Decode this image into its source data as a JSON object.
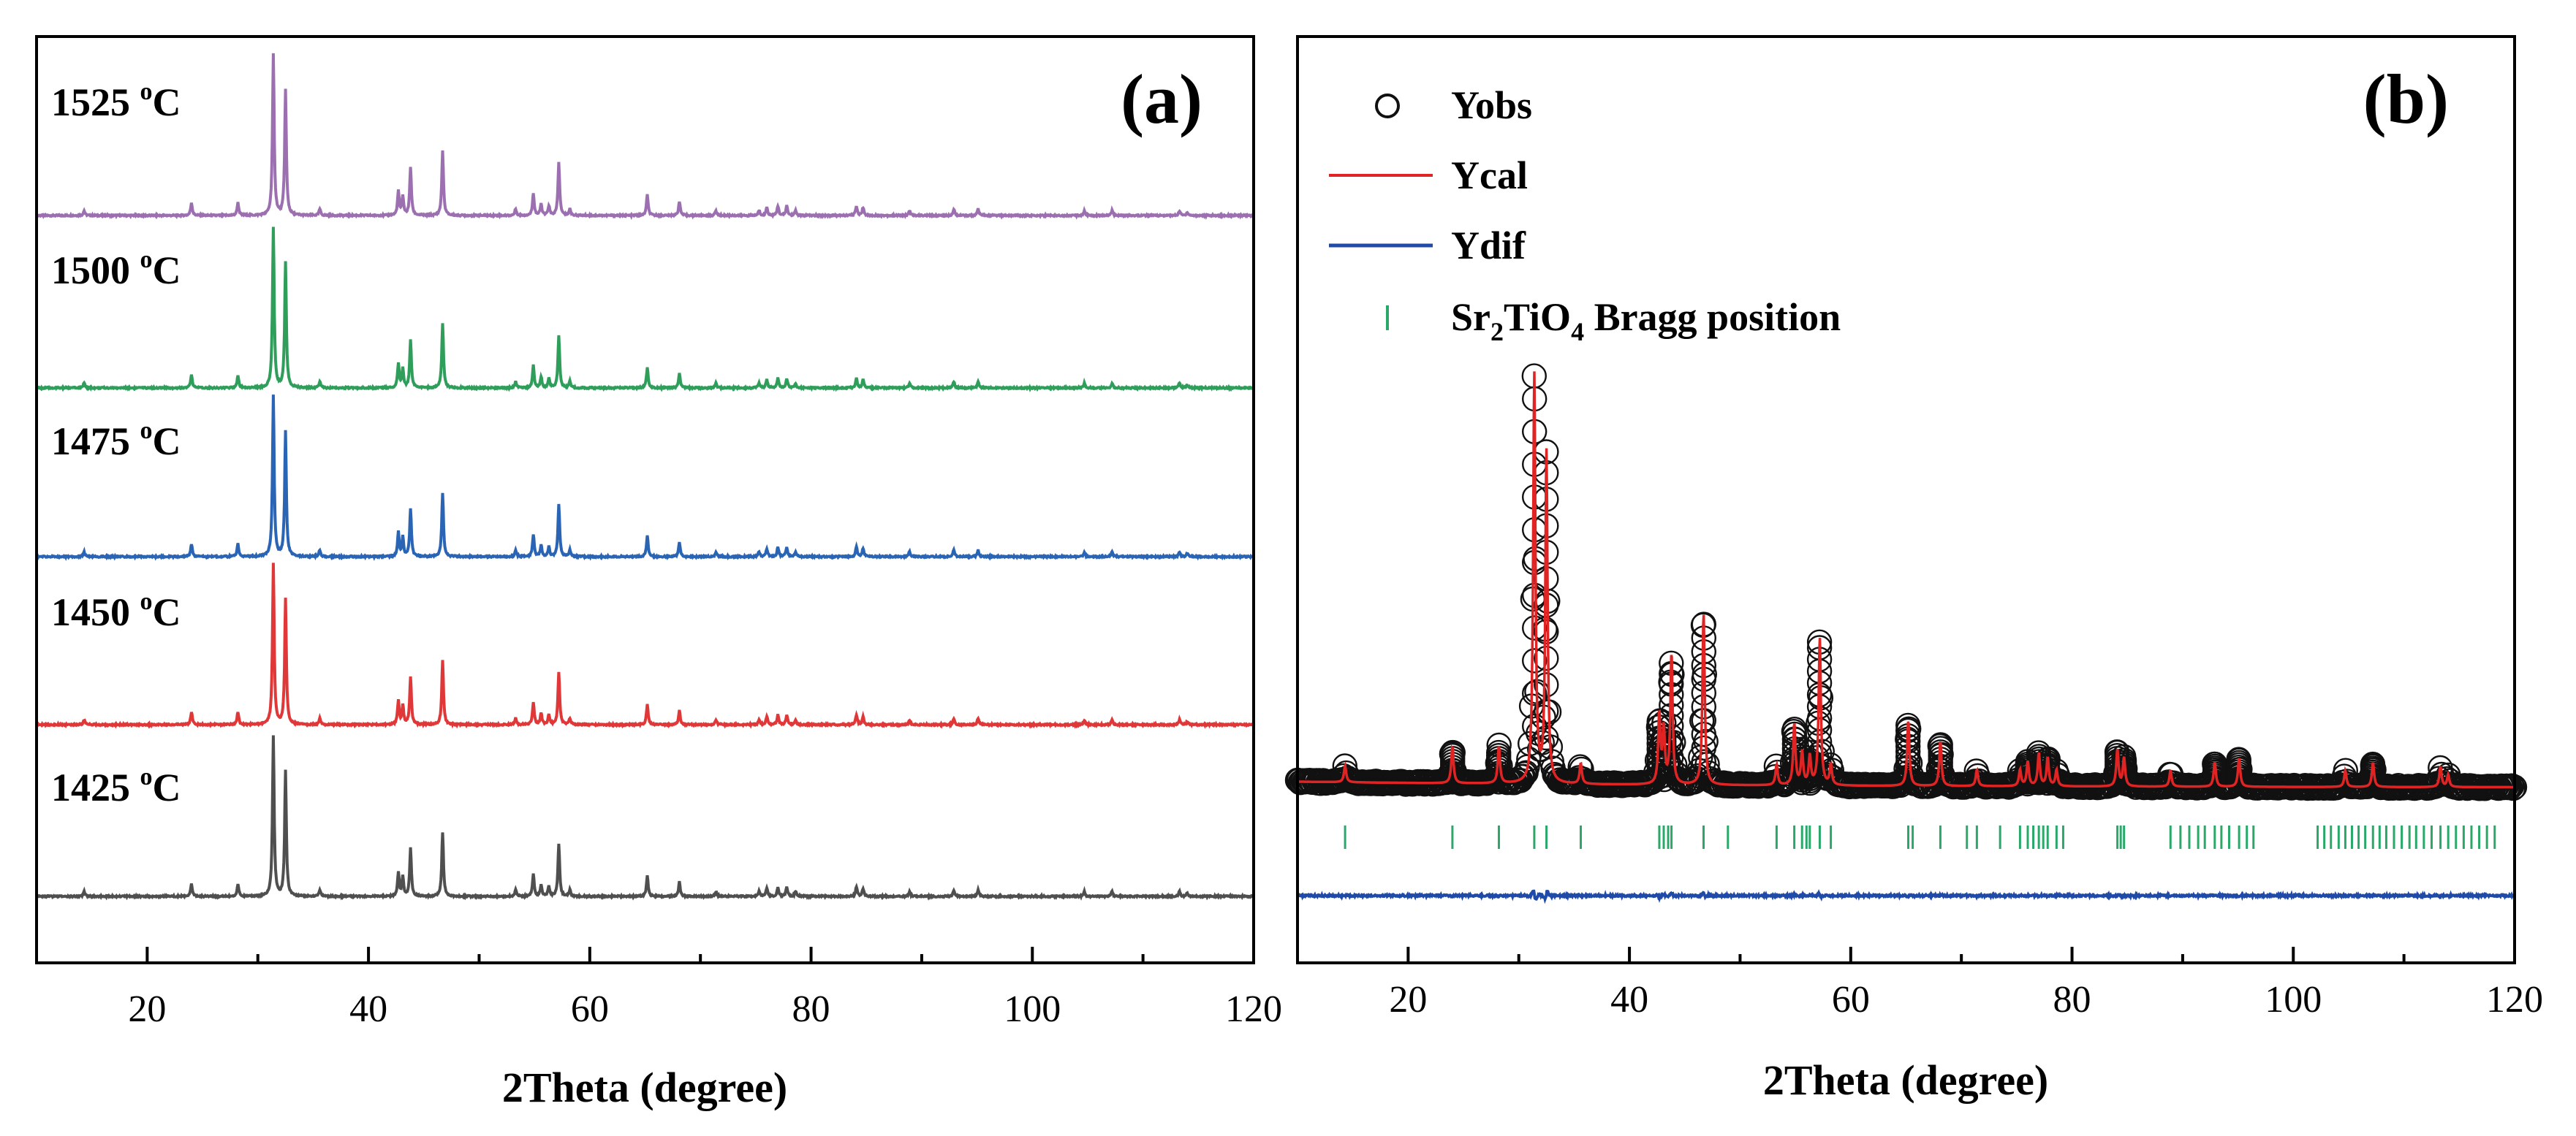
{
  "chart_data": [
    {
      "id": "a",
      "type": "line",
      "panel_label": "(a)",
      "xlabel": "2Theta (degree)",
      "ylabel": "",
      "xlim": [
        10,
        120
      ],
      "xticks": [
        20,
        40,
        60,
        80,
        100,
        120
      ],
      "grid": false,
      "colors": {
        "1525": "#9b6fb0",
        "1500": "#2e9e5a",
        "1475": "#2a64b4",
        "1450": "#e03838",
        "1425": "#4f4f4f"
      },
      "series": [
        {
          "key": "1525",
          "name": "1525 ",
          "sup": "o",
          "unit": "C"
        },
        {
          "key": "1500",
          "name": "1500 ",
          "sup": "o",
          "unit": "C"
        },
        {
          "key": "1475",
          "name": "1475 ",
          "sup": "o",
          "unit": "C"
        },
        {
          "key": "1450",
          "name": "1450 ",
          "sup": "o",
          "unit": "C"
        },
        {
          "key": "1425",
          "name": "1425 ",
          "sup": "o",
          "unit": "C"
        }
      ],
      "peaks": [
        {
          "x": 14.3,
          "h": 0.03
        },
        {
          "x": 24.0,
          "h": 0.08
        },
        {
          "x": 28.2,
          "h": 0.08
        },
        {
          "x": 31.4,
          "h": 1.0
        },
        {
          "x": 32.5,
          "h": 0.78
        },
        {
          "x": 35.6,
          "h": 0.04
        },
        {
          "x": 42.7,
          "h": 0.15
        },
        {
          "x": 43.1,
          "h": 0.12
        },
        {
          "x": 43.8,
          "h": 0.3
        },
        {
          "x": 46.7,
          "h": 0.4
        },
        {
          "x": 53.3,
          "h": 0.04
        },
        {
          "x": 54.9,
          "h": 0.14
        },
        {
          "x": 55.6,
          "h": 0.07
        },
        {
          "x": 56.3,
          "h": 0.06
        },
        {
          "x": 57.2,
          "h": 0.33
        },
        {
          "x": 58.2,
          "h": 0.04
        },
        {
          "x": 65.2,
          "h": 0.13
        },
        {
          "x": 68.1,
          "h": 0.09
        },
        {
          "x": 71.4,
          "h": 0.03
        },
        {
          "x": 75.3,
          "h": 0.03
        },
        {
          "x": 76.0,
          "h": 0.05
        },
        {
          "x": 77.0,
          "h": 0.06
        },
        {
          "x": 77.8,
          "h": 0.06
        },
        {
          "x": 78.6,
          "h": 0.03
        },
        {
          "x": 84.1,
          "h": 0.06
        },
        {
          "x": 84.7,
          "h": 0.05
        },
        {
          "x": 88.9,
          "h": 0.03
        },
        {
          "x": 92.9,
          "h": 0.04
        },
        {
          "x": 95.1,
          "h": 0.04
        },
        {
          "x": 104.7,
          "h": 0.03
        },
        {
          "x": 107.2,
          "h": 0.03
        },
        {
          "x": 113.3,
          "h": 0.03
        },
        {
          "x": 114.0,
          "h": 0.02
        }
      ]
    },
    {
      "id": "b",
      "type": "scatter",
      "panel_label": "(b)",
      "xlabel": "2Theta (degree)",
      "ylabel": "",
      "xlim": [
        10,
        120
      ],
      "xticks": [
        20,
        40,
        60,
        80,
        100,
        120
      ],
      "grid": false,
      "colors": {
        "obs": "#111111",
        "cal": "#e02424",
        "dif": "#1f4aa8",
        "bragg": "#2aa86a"
      },
      "legend": {
        "position": "top-left",
        "entries": [
          {
            "key": "obs",
            "label": "Yobs"
          },
          {
            "key": "cal",
            "label": "Ycal"
          },
          {
            "key": "dif",
            "label": "Ydif"
          },
          {
            "key": "bragg",
            "pre": "Sr",
            "sub1": "2",
            "mid": "TiO",
            "sub2": "4",
            "post": " Bragg position"
          }
        ]
      },
      "peaks": [
        {
          "x": 14.3,
          "h": 0.04
        },
        {
          "x": 24.0,
          "h": 0.09
        },
        {
          "x": 28.2,
          "h": 0.09
        },
        {
          "x": 31.4,
          "h": 1.0
        },
        {
          "x": 32.5,
          "h": 0.81
        },
        {
          "x": 35.6,
          "h": 0.05
        },
        {
          "x": 42.7,
          "h": 0.17
        },
        {
          "x": 43.1,
          "h": 0.13
        },
        {
          "x": 43.8,
          "h": 0.32
        },
        {
          "x": 46.7,
          "h": 0.42
        },
        {
          "x": 53.3,
          "h": 0.05
        },
        {
          "x": 54.9,
          "h": 0.15
        },
        {
          "x": 55.6,
          "h": 0.08
        },
        {
          "x": 56.3,
          "h": 0.07
        },
        {
          "x": 57.2,
          "h": 0.36
        },
        {
          "x": 58.2,
          "h": 0.05
        },
        {
          "x": 65.2,
          "h": 0.16
        },
        {
          "x": 68.1,
          "h": 0.11
        },
        {
          "x": 71.4,
          "h": 0.04
        },
        {
          "x": 75.3,
          "h": 0.04
        },
        {
          "x": 76.0,
          "h": 0.06
        },
        {
          "x": 77.0,
          "h": 0.08
        },
        {
          "x": 77.8,
          "h": 0.07
        },
        {
          "x": 78.6,
          "h": 0.04
        },
        {
          "x": 84.1,
          "h": 0.09
        },
        {
          "x": 84.7,
          "h": 0.07
        },
        {
          "x": 88.9,
          "h": 0.04
        },
        {
          "x": 92.9,
          "h": 0.06
        },
        {
          "x": 95.1,
          "h": 0.07
        },
        {
          "x": 104.7,
          "h": 0.04
        },
        {
          "x": 107.2,
          "h": 0.06
        },
        {
          "x": 113.3,
          "h": 0.05
        },
        {
          "x": 114.0,
          "h": 0.03
        }
      ],
      "bragg_positions": [
        14.3,
        24.0,
        28.2,
        31.4,
        32.5,
        35.6,
        42.7,
        43.1,
        43.5,
        43.8,
        46.7,
        48.9,
        53.3,
        54.9,
        55.6,
        56.0,
        56.3,
        57.2,
        58.2,
        65.2,
        65.6,
        68.1,
        70.5,
        71.4,
        73.5,
        75.3,
        76.0,
        76.5,
        77.0,
        77.4,
        77.8,
        78.6,
        79.2,
        84.1,
        84.4,
        84.7,
        88.9,
        89.8,
        90.6,
        91.4,
        92.0,
        92.9,
        93.5,
        94.2,
        95.1,
        95.8,
        96.4,
        102.2,
        102.8,
        103.4,
        104.1,
        104.7,
        105.3,
        105.9,
        106.5,
        107.2,
        107.8,
        108.4,
        109.1,
        109.8,
        110.5,
        111.1,
        111.8,
        112.5,
        113.3,
        114.0,
        114.7,
        115.4,
        116.1,
        116.8,
        117.5,
        118.2
      ]
    }
  ]
}
